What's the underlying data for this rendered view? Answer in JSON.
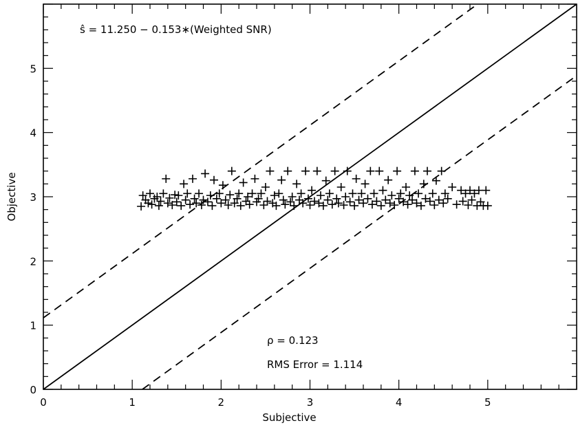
{
  "chart_data": {
    "type": "scatter",
    "title": "",
    "xlabel": "Subjective",
    "ylabel": "Objective",
    "xlim": [
      0,
      6
    ],
    "ylim": [
      0,
      6
    ],
    "xticks": [
      "0",
      "1",
      "2",
      "3",
      "4",
      "5"
    ],
    "yticks": [
      "0",
      "1",
      "2",
      "3",
      "4",
      "5"
    ],
    "grid": false,
    "annotations": {
      "equation": "ŝ = 11.250 − 0.153∗(Weighted SNR)",
      "rho": "ρ = 0.123",
      "rms": "RMS Error = 1.114"
    },
    "reference_lines": [
      {
        "style": "solid",
        "intercept": 0,
        "slope": 1
      },
      {
        "style": "dashed",
        "intercept": 1.114,
        "slope": 1
      },
      {
        "style": "dashed",
        "intercept": -1.114,
        "slope": 1
      }
    ],
    "points": [
      {
        "x": 1.1,
        "y": 2.85
      },
      {
        "x": 1.12,
        "y": 3.02
      },
      {
        "x": 1.15,
        "y": 2.95
      },
      {
        "x": 1.18,
        "y": 2.9
      },
      {
        "x": 1.2,
        "y": 3.05
      },
      {
        "x": 1.22,
        "y": 2.88
      },
      {
        "x": 1.25,
        "y": 2.97
      },
      {
        "x": 1.28,
        "y": 3.0
      },
      {
        "x": 1.3,
        "y": 2.86
      },
      {
        "x": 1.32,
        "y": 2.93
      },
      {
        "x": 1.35,
        "y": 3.05
      },
      {
        "x": 1.38,
        "y": 3.28
      },
      {
        "x": 1.4,
        "y": 2.9
      },
      {
        "x": 1.42,
        "y": 2.98
      },
      {
        "x": 1.45,
        "y": 2.87
      },
      {
        "x": 1.48,
        "y": 3.03
      },
      {
        "x": 1.5,
        "y": 2.92
      },
      {
        "x": 1.52,
        "y": 3.02
      },
      {
        "x": 1.55,
        "y": 2.86
      },
      {
        "x": 1.58,
        "y": 3.2
      },
      {
        "x": 1.6,
        "y": 2.95
      },
      {
        "x": 1.62,
        "y": 3.05
      },
      {
        "x": 1.65,
        "y": 2.88
      },
      {
        "x": 1.68,
        "y": 3.28
      },
      {
        "x": 1.7,
        "y": 2.97
      },
      {
        "x": 1.72,
        "y": 2.9
      },
      {
        "x": 1.75,
        "y": 3.05
      },
      {
        "x": 1.78,
        "y": 2.87
      },
      {
        "x": 1.8,
        "y": 2.95
      },
      {
        "x": 1.82,
        "y": 3.36
      },
      {
        "x": 1.85,
        "y": 2.92
      },
      {
        "x": 1.88,
        "y": 3.02
      },
      {
        "x": 1.9,
        "y": 2.86
      },
      {
        "x": 1.92,
        "y": 3.26
      },
      {
        "x": 1.95,
        "y": 2.97
      },
      {
        "x": 1.98,
        "y": 3.05
      },
      {
        "x": 2.0,
        "y": 2.9
      },
      {
        "x": 2.02,
        "y": 3.18
      },
      {
        "x": 2.05,
        "y": 2.95
      },
      {
        "x": 2.08,
        "y": 2.87
      },
      {
        "x": 2.1,
        "y": 3.03
      },
      {
        "x": 2.12,
        "y": 3.4
      },
      {
        "x": 2.15,
        "y": 2.9
      },
      {
        "x": 2.18,
        "y": 2.97
      },
      {
        "x": 2.2,
        "y": 3.05
      },
      {
        "x": 2.22,
        "y": 2.86
      },
      {
        "x": 2.25,
        "y": 3.22
      },
      {
        "x": 2.28,
        "y": 2.93
      },
      {
        "x": 2.3,
        "y": 3.0
      },
      {
        "x": 2.32,
        "y": 2.88
      },
      {
        "x": 2.35,
        "y": 3.05
      },
      {
        "x": 2.38,
        "y": 3.28
      },
      {
        "x": 2.4,
        "y": 2.92
      },
      {
        "x": 2.42,
        "y": 2.97
      },
      {
        "x": 2.45,
        "y": 3.05
      },
      {
        "x": 2.48,
        "y": 2.87
      },
      {
        "x": 2.5,
        "y": 3.15
      },
      {
        "x": 2.52,
        "y": 2.93
      },
      {
        "x": 2.55,
        "y": 3.4
      },
      {
        "x": 2.58,
        "y": 2.9
      },
      {
        "x": 2.6,
        "y": 3.02
      },
      {
        "x": 2.62,
        "y": 2.86
      },
      {
        "x": 2.65,
        "y": 3.05
      },
      {
        "x": 2.68,
        "y": 3.26
      },
      {
        "x": 2.7,
        "y": 2.95
      },
      {
        "x": 2.72,
        "y": 2.88
      },
      {
        "x": 2.75,
        "y": 3.4
      },
      {
        "x": 2.78,
        "y": 2.92
      },
      {
        "x": 2.8,
        "y": 3.0
      },
      {
        "x": 2.82,
        "y": 2.86
      },
      {
        "x": 2.85,
        "y": 3.2
      },
      {
        "x": 2.88,
        "y": 2.95
      },
      {
        "x": 2.9,
        "y": 3.05
      },
      {
        "x": 2.92,
        "y": 2.9
      },
      {
        "x": 2.95,
        "y": 3.4
      },
      {
        "x": 2.98,
        "y": 2.97
      },
      {
        "x": 3.0,
        "y": 2.87
      },
      {
        "x": 3.02,
        "y": 3.1
      },
      {
        "x": 3.05,
        "y": 2.93
      },
      {
        "x": 3.08,
        "y": 3.4
      },
      {
        "x": 3.1,
        "y": 2.9
      },
      {
        "x": 3.12,
        "y": 3.02
      },
      {
        "x": 3.15,
        "y": 2.86
      },
      {
        "x": 3.18,
        "y": 3.25
      },
      {
        "x": 3.2,
        "y": 2.95
      },
      {
        "x": 3.22,
        "y": 3.05
      },
      {
        "x": 3.25,
        "y": 2.88
      },
      {
        "x": 3.28,
        "y": 3.4
      },
      {
        "x": 3.3,
        "y": 2.97
      },
      {
        "x": 3.32,
        "y": 2.9
      },
      {
        "x": 3.35,
        "y": 3.15
      },
      {
        "x": 3.38,
        "y": 2.87
      },
      {
        "x": 3.4,
        "y": 3.0
      },
      {
        "x": 3.42,
        "y": 3.4
      },
      {
        "x": 3.45,
        "y": 2.92
      },
      {
        "x": 3.48,
        "y": 3.05
      },
      {
        "x": 3.5,
        "y": 2.86
      },
      {
        "x": 3.52,
        "y": 3.28
      },
      {
        "x": 3.55,
        "y": 2.95
      },
      {
        "x": 3.58,
        "y": 3.05
      },
      {
        "x": 3.6,
        "y": 2.9
      },
      {
        "x": 3.62,
        "y": 3.2
      },
      {
        "x": 3.65,
        "y": 2.97
      },
      {
        "x": 3.68,
        "y": 3.4
      },
      {
        "x": 3.7,
        "y": 2.88
      },
      {
        "x": 3.72,
        "y": 3.05
      },
      {
        "x": 3.75,
        "y": 2.93
      },
      {
        "x": 3.78,
        "y": 3.4
      },
      {
        "x": 3.8,
        "y": 2.86
      },
      {
        "x": 3.82,
        "y": 3.1
      },
      {
        "x": 3.85,
        "y": 2.95
      },
      {
        "x": 3.88,
        "y": 3.26
      },
      {
        "x": 3.9,
        "y": 2.9
      },
      {
        "x": 3.92,
        "y": 3.02
      },
      {
        "x": 3.95,
        "y": 2.87
      },
      {
        "x": 3.98,
        "y": 3.4
      },
      {
        "x": 4.0,
        "y": 2.97
      },
      {
        "x": 4.02,
        "y": 3.05
      },
      {
        "x": 4.05,
        "y": 2.92
      },
      {
        "x": 4.08,
        "y": 3.15
      },
      {
        "x": 4.1,
        "y": 2.88
      },
      {
        "x": 4.12,
        "y": 3.02
      },
      {
        "x": 4.15,
        "y": 2.95
      },
      {
        "x": 4.18,
        "y": 3.4
      },
      {
        "x": 4.2,
        "y": 2.9
      },
      {
        "x": 4.22,
        "y": 3.05
      },
      {
        "x": 4.25,
        "y": 2.86
      },
      {
        "x": 4.28,
        "y": 3.2
      },
      {
        "x": 4.3,
        "y": 2.97
      },
      {
        "x": 4.32,
        "y": 3.4
      },
      {
        "x": 4.35,
        "y": 2.93
      },
      {
        "x": 4.38,
        "y": 3.05
      },
      {
        "x": 4.4,
        "y": 2.87
      },
      {
        "x": 4.42,
        "y": 3.25
      },
      {
        "x": 4.45,
        "y": 2.95
      },
      {
        "x": 4.48,
        "y": 3.4
      },
      {
        "x": 4.5,
        "y": 2.9
      },
      {
        "x": 4.52,
        "y": 3.05
      },
      {
        "x": 4.55,
        "y": 2.97
      },
      {
        "x": 4.6,
        "y": 3.15
      },
      {
        "x": 4.65,
        "y": 2.88
      },
      {
        "x": 4.7,
        "y": 3.1
      },
      {
        "x": 4.72,
        "y": 2.93
      },
      {
        "x": 4.75,
        "y": 3.05
      },
      {
        "x": 4.78,
        "y": 2.87
      },
      {
        "x": 4.8,
        "y": 3.1
      },
      {
        "x": 4.82,
        "y": 2.95
      },
      {
        "x": 4.85,
        "y": 3.05
      },
      {
        "x": 4.88,
        "y": 2.86
      },
      {
        "x": 4.9,
        "y": 3.1
      },
      {
        "x": 4.92,
        "y": 2.92
      },
      {
        "x": 4.95,
        "y": 2.86
      },
      {
        "x": 4.98,
        "y": 3.1
      },
      {
        "x": 5.0,
        "y": 2.86
      }
    ]
  }
}
